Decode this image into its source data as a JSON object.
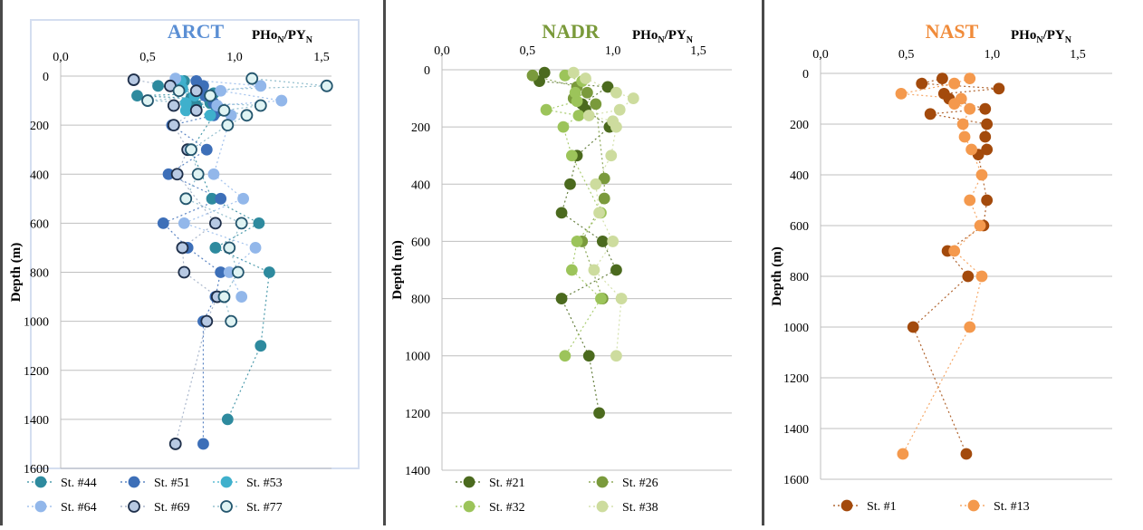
{
  "chart_data": [
    {
      "type": "scatter",
      "title": "ARCT",
      "title_color": "#5b8fd4",
      "xlabel_main": "PHo",
      "xlabel_sub": "N",
      "xlabel_sep": "/PY",
      "xlabel_sub2": "N",
      "ylabel": "Depth (m)",
      "xlim": [
        0,
        1.7
      ],
      "xticks": [
        "0,0",
        "0,5",
        "1,0",
        "1,5"
      ],
      "xtick_values": [
        0,
        0.5,
        1.0,
        1.5
      ],
      "ylim": [
        0,
        1600
      ],
      "yticks": [
        "0",
        "200",
        "400",
        "600",
        "800",
        "1000",
        "1200",
        "1400",
        "1600"
      ],
      "ytick_values": [
        0,
        200,
        400,
        600,
        800,
        1000,
        1200,
        1400,
        1600
      ],
      "y_inverted": true,
      "grid": "horizontal",
      "legend_position": "bottom",
      "series": [
        {
          "name": "St. #44",
          "color": "#2e8a9e",
          "edge": "#2e8a9e",
          "lineColor": "#2e8a9e",
          "points": [
            [
              0.71,
              20
            ],
            [
              0.56,
              40
            ],
            [
              0.79,
              60
            ],
            [
              0.88,
              70
            ],
            [
              0.44,
              80
            ],
            [
              0.75,
              90
            ],
            [
              0.86,
              110
            ],
            [
              0.78,
              120
            ],
            [
              0.91,
              140
            ],
            [
              0.89,
              150
            ],
            [
              0.75,
              300
            ],
            [
              0.87,
              500
            ],
            [
              1.14,
              600
            ],
            [
              0.89,
              700
            ],
            [
              1.2,
              800
            ],
            [
              1.15,
              1100
            ],
            [
              0.96,
              1400
            ]
          ]
        },
        {
          "name": "St. #51",
          "color": "#3d6fb8",
          "edge": "#3d6fb8",
          "lineColor": "#3d6fb8",
          "points": [
            [
              0.78,
              20
            ],
            [
              0.82,
              40
            ],
            [
              0.83,
              80
            ],
            [
              0.88,
              110
            ],
            [
              0.91,
              130
            ],
            [
              0.88,
              160
            ],
            [
              0.64,
              200
            ],
            [
              0.84,
              300
            ],
            [
              0.62,
              400
            ],
            [
              0.92,
              500
            ],
            [
              0.59,
              600
            ],
            [
              0.73,
              700
            ],
            [
              0.92,
              800
            ],
            [
              0.89,
              900
            ],
            [
              0.82,
              1000
            ],
            [
              0.82,
              1500
            ]
          ]
        },
        {
          "name": "St. #53",
          "color": "#3fb0cc",
          "edge": "#3fb0cc",
          "lineColor": "#3fb0cc",
          "points": [
            [
              0.69,
              20
            ],
            [
              0.7,
              50
            ],
            [
              0.77,
              80
            ],
            [
              0.72,
              110
            ],
            [
              0.72,
              140
            ],
            [
              0.86,
              160
            ]
          ]
        },
        {
          "name": "St. #64",
          "color": "#92b7ea",
          "edge": "#92b7ea",
          "lineColor": "#92b7ea",
          "points": [
            [
              0.66,
              10
            ],
            [
              1.15,
              40
            ],
            [
              0.92,
              60
            ],
            [
              1.27,
              100
            ],
            [
              0.9,
              120
            ],
            [
              0.98,
              160
            ],
            [
              0.88,
              400
            ],
            [
              1.05,
              500
            ],
            [
              0.71,
              600
            ],
            [
              1.12,
              700
            ],
            [
              0.97,
              800
            ],
            [
              1.04,
              900
            ]
          ]
        },
        {
          "name": "St. #69",
          "color": "#b7c9e3",
          "edge": "#1e2f4a",
          "lineColor": "#9aa9c2",
          "points": [
            [
              0.42,
              15
            ],
            [
              0.63,
              40
            ],
            [
              0.78,
              60
            ],
            [
              0.65,
              120
            ],
            [
              0.78,
              140
            ],
            [
              0.65,
              200
            ],
            [
              0.73,
              300
            ],
            [
              0.67,
              400
            ],
            [
              0.89,
              600
            ],
            [
              0.7,
              700
            ],
            [
              0.71,
              800
            ],
            [
              0.9,
              900
            ],
            [
              0.84,
              1000
            ],
            [
              0.66,
              1500
            ]
          ]
        },
        {
          "name": "St. #77",
          "color": "#dff3f3",
          "edge": "#24566e",
          "lineColor": "#7fb3c4",
          "points": [
            [
              1.1,
              10
            ],
            [
              1.53,
              40
            ],
            [
              0.68,
              60
            ],
            [
              0.86,
              80
            ],
            [
              0.5,
              100
            ],
            [
              1.15,
              120
            ],
            [
              0.94,
              140
            ],
            [
              1.07,
              160
            ],
            [
              0.96,
              200
            ],
            [
              0.75,
              300
            ],
            [
              0.79,
              400
            ],
            [
              0.72,
              500
            ],
            [
              1.04,
              600
            ],
            [
              0.97,
              700
            ],
            [
              1.02,
              800
            ],
            [
              0.94,
              900
            ],
            [
              0.98,
              1000
            ]
          ]
        }
      ]
    },
    {
      "type": "scatter",
      "title": "NADR",
      "title_color": "#7a9a3a",
      "xlabel_main": "PHo",
      "xlabel_sub": "N",
      "xlabel_sep": "/PY",
      "xlabel_sub2": "N",
      "ylabel": "Depth (m)",
      "xlim": [
        0,
        1.7
      ],
      "xticks": [
        "0,0",
        "0,5",
        "1,0",
        "1,5"
      ],
      "xtick_values": [
        0,
        0.5,
        1.0,
        1.5
      ],
      "ylim": [
        0,
        1400
      ],
      "yticks": [
        "0",
        "200",
        "400",
        "600",
        "800",
        "1000",
        "1200",
        "1400"
      ],
      "ytick_values": [
        0,
        200,
        400,
        600,
        800,
        1000,
        1200,
        1400
      ],
      "y_inverted": true,
      "grid": "horizontal",
      "legend_position": "bottom",
      "series": [
        {
          "name": "St. #21",
          "color": "#4b6a1e",
          "edge": "#4b6a1e",
          "lineColor": "#4b6a1e",
          "points": [
            [
              0.6,
              10
            ],
            [
              0.57,
              40
            ],
            [
              0.97,
              60
            ],
            [
              0.82,
              120
            ],
            [
              0.84,
              140
            ],
            [
              0.98,
              200
            ],
            [
              0.79,
              300
            ],
            [
              0.75,
              400
            ],
            [
              0.7,
              500
            ],
            [
              0.94,
              600
            ],
            [
              1.02,
              700
            ],
            [
              0.7,
              800
            ],
            [
              0.86,
              1000
            ],
            [
              0.92,
              1200
            ]
          ]
        },
        {
          "name": "St. #26",
          "color": "#7a9a3c",
          "edge": "#7a9a3c",
          "lineColor": "#7a9a3c",
          "points": [
            [
              0.53,
              20
            ],
            [
              0.79,
              60
            ],
            [
              0.85,
              80
            ],
            [
              0.77,
              100
            ],
            [
              0.9,
              120
            ],
            [
              0.95,
              380
            ],
            [
              0.95,
              450
            ],
            [
              0.82,
              600
            ],
            [
              0.94,
              800
            ]
          ]
        },
        {
          "name": "St. #32",
          "color": "#9cc45a",
          "edge": "#9cc45a",
          "lineColor": "#9cc45a",
          "points": [
            [
              0.72,
              20
            ],
            [
              0.82,
              40
            ],
            [
              0.78,
              80
            ],
            [
              0.79,
              110
            ],
            [
              0.61,
              140
            ],
            [
              0.8,
              160
            ],
            [
              0.71,
              200
            ],
            [
              0.76,
              300
            ],
            [
              0.93,
              500
            ],
            [
              0.79,
              600
            ],
            [
              0.76,
              700
            ],
            [
              0.93,
              800
            ],
            [
              0.72,
              1000
            ]
          ]
        },
        {
          "name": "St. #38",
          "color": "#cddc9e",
          "edge": "#cddc9e",
          "lineColor": "#cddc9e",
          "points": [
            [
              0.77,
              10
            ],
            [
              0.84,
              30
            ],
            [
              1.02,
              80
            ],
            [
              1.12,
              100
            ],
            [
              1.04,
              140
            ],
            [
              0.86,
              160
            ],
            [
              1.0,
              180
            ],
            [
              1.02,
              200
            ],
            [
              0.99,
              300
            ],
            [
              0.9,
              400
            ],
            [
              0.92,
              500
            ],
            [
              1.0,
              600
            ],
            [
              0.89,
              700
            ],
            [
              1.05,
              800
            ],
            [
              1.02,
              1000
            ]
          ]
        }
      ]
    },
    {
      "type": "scatter",
      "title": "NAST",
      "title_color": "#f08b3a",
      "xlabel_main": "PHo",
      "xlabel_sub": "N",
      "xlabel_sep": "/PY",
      "xlabel_sub2": "N",
      "ylabel": "Depth (m)",
      "xlim": [
        0,
        1.7
      ],
      "xticks": [
        "0,0",
        "0,5",
        "1,0",
        "1,5"
      ],
      "xtick_values": [
        0,
        0.5,
        1.0,
        1.5
      ],
      "ylim": [
        0,
        1600
      ],
      "yticks": [
        "0",
        "200",
        "400",
        "600",
        "800",
        "1000",
        "1200",
        "1400",
        "1600"
      ],
      "ytick_values": [
        0,
        200,
        400,
        600,
        800,
        1000,
        1200,
        1400,
        1600
      ],
      "y_inverted": true,
      "grid": "horizontal",
      "legend_position": "bottom",
      "series": [
        {
          "name": "St. #1",
          "color": "#a34a0c",
          "edge": "#a34a0c",
          "lineColor": "#a34a0c",
          "points": [
            [
              0.71,
              20
            ],
            [
              0.59,
              40
            ],
            [
              1.04,
              60
            ],
            [
              0.72,
              80
            ],
            [
              0.75,
              100
            ],
            [
              0.96,
              140
            ],
            [
              0.64,
              160
            ],
            [
              0.97,
              200
            ],
            [
              0.96,
              250
            ],
            [
              0.97,
              300
            ],
            [
              0.92,
              320
            ],
            [
              0.97,
              500
            ],
            [
              0.95,
              600
            ],
            [
              0.74,
              700
            ],
            [
              0.86,
              800
            ],
            [
              0.54,
              1000
            ],
            [
              0.85,
              1500
            ]
          ]
        },
        {
          "name": "St. #13",
          "color": "#f4994d",
          "edge": "#f4994d",
          "lineColor": "#f4994d",
          "points": [
            [
              0.87,
              20
            ],
            [
              0.78,
              40
            ],
            [
              0.47,
              80
            ],
            [
              0.82,
              100
            ],
            [
              0.78,
              120
            ],
            [
              0.87,
              140
            ],
            [
              0.83,
              200
            ],
            [
              0.84,
              250
            ],
            [
              0.88,
              300
            ],
            [
              0.94,
              400
            ],
            [
              0.87,
              500
            ],
            [
              0.93,
              600
            ],
            [
              0.78,
              700
            ],
            [
              0.94,
              800
            ],
            [
              0.87,
              1000
            ],
            [
              0.48,
              1500
            ]
          ]
        }
      ]
    }
  ]
}
